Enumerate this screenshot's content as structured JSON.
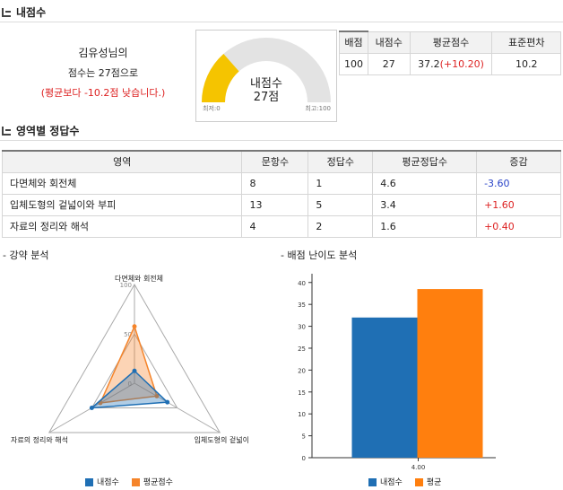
{
  "sections": {
    "my_score": "내점수",
    "area_correct": "영역별 정답수",
    "weakness": "- 강약 분석",
    "difficulty": "- 배점 난이도 분석"
  },
  "summary": {
    "name": "김유성님의",
    "score_line": "점수는 27점으로",
    "diff_line": "(평균보다 -10.2점 낮습니다.)"
  },
  "gauge": {
    "label": "내점수",
    "value_text": "27점",
    "min_label": "최저:0",
    "max_label": "최고:100",
    "fraction": 0.27,
    "fill_color": "#f5c400",
    "track_color": "#e3e3e3"
  },
  "stats": {
    "headers": [
      "배점",
      "내점수",
      "평균점수",
      "표준편차"
    ],
    "values": {
      "total": "100",
      "mine": "27",
      "avg_base": "37.2",
      "avg_delta": "(+10.20)",
      "std": "10.2"
    }
  },
  "area_table": {
    "headers": [
      "영역",
      "문항수",
      "정답수",
      "평균정답수",
      "증감"
    ],
    "rows": [
      {
        "area": "다면체와 회전체",
        "count": "8",
        "correct": "1",
        "avg": "4.6",
        "delta": "-3.60"
      },
      {
        "area": "입체도형의 겉넓이와 부피",
        "count": "13",
        "correct": "5",
        "avg": "3.4",
        "delta": "+1.60"
      },
      {
        "area": "자료의 정리와 해석",
        "count": "4",
        "correct": "2",
        "avg": "1.6",
        "delta": "+0.40"
      }
    ]
  },
  "chart_data": [
    {
      "type": "radar",
      "axes": [
        "다면체와 회전체",
        "입체도형의 겉넓이",
        "자료의 정리와 해석"
      ],
      "axis_labels_display": [
        "다면체와 회전체",
        "입체도형의 겉넓이",
        "자료의 정리와 해석"
      ],
      "ticks": [
        "100",
        "50",
        "0"
      ],
      "range": [
        0,
        100
      ],
      "series": [
        {
          "name": "내점수",
          "values": [
            12.5,
            38.5,
            50
          ],
          "color": "#1f6fb4"
        },
        {
          "name": "평균점수",
          "values": [
            57.5,
            26.2,
            40
          ],
          "color": "#f5842a"
        }
      ],
      "legend": "bottom"
    },
    {
      "type": "bar",
      "categories": [
        "4.00"
      ],
      "series": [
        {
          "name": "내점수",
          "values": [
            32
          ],
          "color": "#1f6fb4"
        },
        {
          "name": "평균",
          "values": [
            38.5
          ],
          "color": "#ff7f0e"
        }
      ],
      "yticks": [
        "0",
        "5",
        "10",
        "15",
        "20",
        "25",
        "30",
        "35",
        "40"
      ],
      "ylim": [
        0,
        42
      ],
      "legend": "bottom"
    }
  ]
}
